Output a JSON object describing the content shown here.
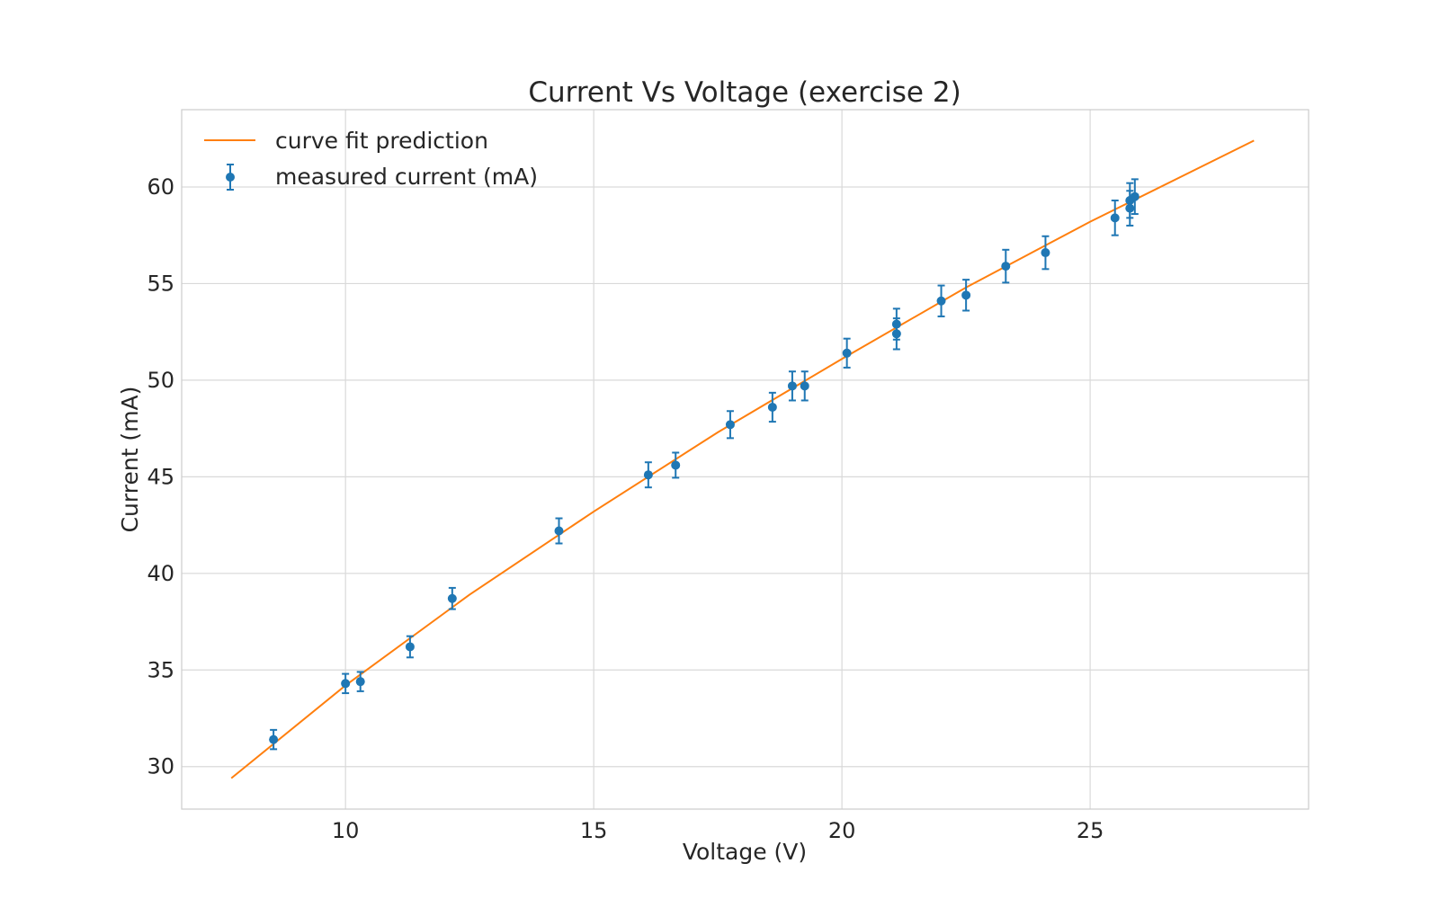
{
  "chart_data": {
    "type": "scatter",
    "title": "Current Vs Voltage (exercise 2)",
    "xlabel": "Voltage (V)",
    "ylabel": "Current (mA)",
    "xlim": [
      6.7,
      29.4
    ],
    "ylim": [
      27.8,
      64.0
    ],
    "xticks": [
      10,
      15,
      20,
      25
    ],
    "yticks": [
      30,
      35,
      40,
      45,
      50,
      55,
      60
    ],
    "grid": true,
    "legend_position": "top-left",
    "colors": {
      "fit": "#ff7f0e",
      "measured": "#1f77b4",
      "grid": "#d9d9d9",
      "frame": "#cccccc"
    },
    "series": [
      {
        "name": "curve fit prediction",
        "kind": "line",
        "x": [
          7.7,
          10.0,
          12.5,
          15.0,
          17.5,
          20.0,
          22.5,
          25.0,
          28.3
        ],
        "y": [
          29.4,
          34.2,
          38.9,
          43.2,
          47.3,
          51.1,
          54.8,
          58.2,
          62.4
        ]
      },
      {
        "name": "measured current (mA)",
        "kind": "errorbar",
        "x": [
          8.55,
          10.0,
          10.3,
          11.3,
          12.15,
          14.3,
          16.1,
          16.65,
          17.75,
          18.6,
          19.0,
          19.25,
          20.1,
          21.1,
          21.1,
          22.0,
          22.5,
          23.3,
          24.1,
          25.5,
          25.8,
          25.8,
          25.9
        ],
        "y": [
          31.4,
          34.3,
          34.4,
          36.2,
          38.7,
          42.2,
          45.1,
          45.6,
          47.7,
          48.6,
          49.7,
          49.7,
          51.4,
          52.9,
          52.4,
          54.1,
          54.4,
          55.9,
          56.6,
          58.4,
          59.3,
          58.9,
          59.5
        ],
        "yerr": [
          0.5,
          0.5,
          0.5,
          0.55,
          0.55,
          0.65,
          0.65,
          0.65,
          0.7,
          0.75,
          0.75,
          0.75,
          0.75,
          0.8,
          0.8,
          0.8,
          0.8,
          0.85,
          0.85,
          0.9,
          0.9,
          0.9,
          0.9
        ]
      }
    ]
  }
}
